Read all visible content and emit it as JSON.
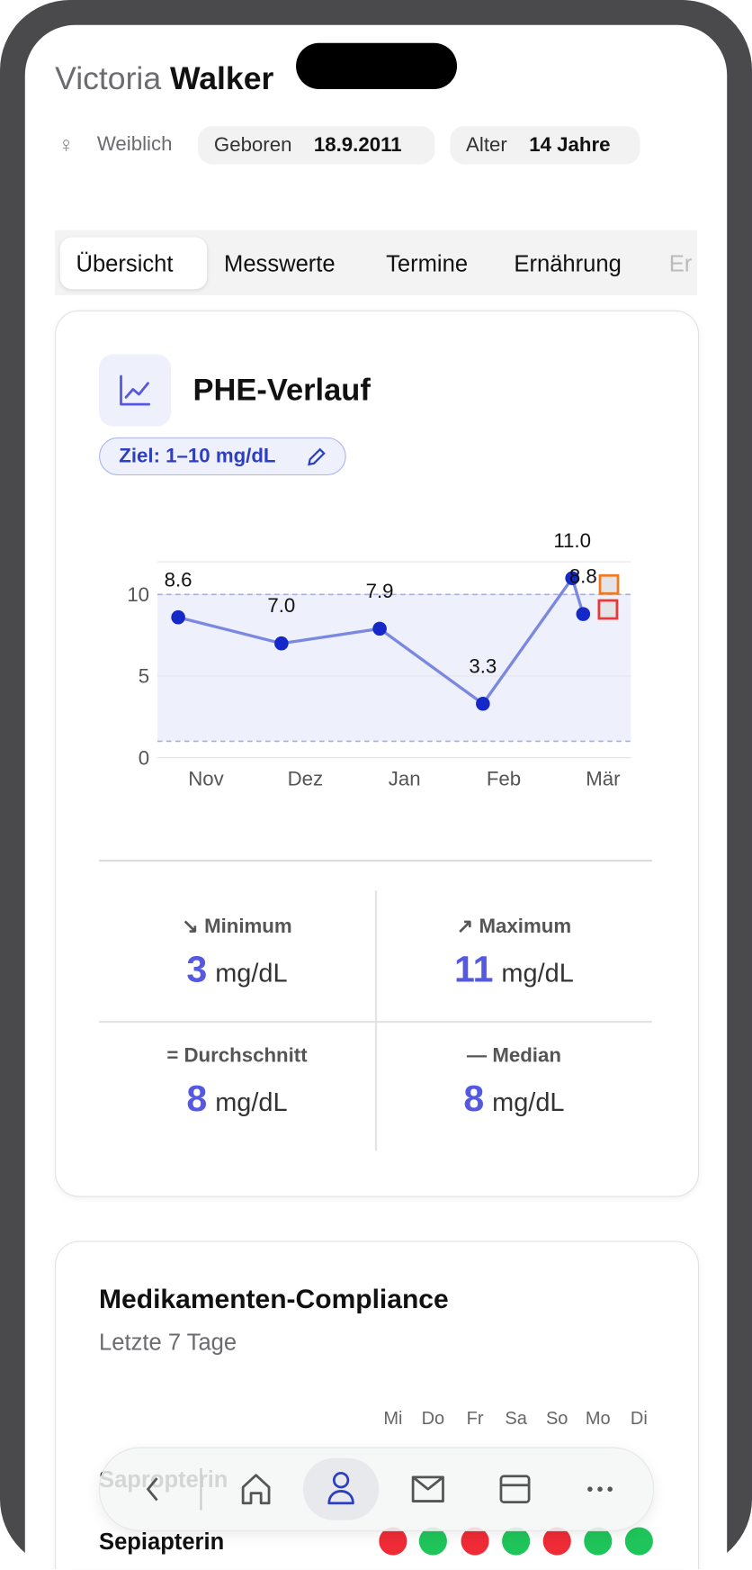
{
  "header": {
    "first_name": "Victoria",
    "last_name": "Walker",
    "gender": "Weiblich",
    "born_label": "Geboren",
    "born": "18.9.2011",
    "age_label": "Alter",
    "age": "14 Jahre"
  },
  "tabs": [
    "Übersicht",
    "Messwerte",
    "Termine",
    "Ernährung",
    "Er"
  ],
  "phe_card": {
    "title": "PHE-Verlauf",
    "target_label": "Ziel: 1–10 mg/dL"
  },
  "chart_data": {
    "type": "line",
    "x": [
      -0.28,
      0.76,
      1.75,
      2.79,
      3.69,
      3.8
    ],
    "values": [
      8.6,
      7.0,
      7.9,
      3.3,
      11.0,
      8.8
    ],
    "value_labels": [
      "8.6",
      "7.0",
      "7.9",
      "3.3",
      "11.0",
      "8.8"
    ],
    "xlim": [
      -0.49,
      4.28
    ],
    "xticks": [
      {
        "value": 0,
        "label": "Nov"
      },
      {
        "value": 1,
        "label": "Dez"
      },
      {
        "value": 2,
        "label": "Jan"
      },
      {
        "value": 3,
        "label": "Feb"
      },
      {
        "value": 4,
        "label": "Mär"
      }
    ],
    "ylim": [
      0,
      12
    ],
    "yticks": [
      0,
      5,
      10
    ],
    "target_band": [
      1,
      10
    ],
    "line_color": "#7b88e0",
    "point_color": "#1528c8",
    "band_color": "#eef0fb",
    "grid": true
  },
  "stats": [
    {
      "label": "Minimum",
      "value": "3",
      "unit": "mg/dL"
    },
    {
      "label": "Maximum",
      "value": "11",
      "unit": "mg/dL"
    },
    {
      "label": "Durchschnitt",
      "value": "8",
      "unit": "mg/dL"
    },
    {
      "label": "Median",
      "value": "8",
      "unit": "mg/dL"
    }
  ],
  "compliance": {
    "title": "Medikamenten-Compliance",
    "subtitle": "Letzte 7 Tage",
    "days": [
      "Mi",
      "Do",
      "Fr",
      "Sa",
      "So",
      "Mo",
      "Di"
    ],
    "rows": [
      {
        "name": "Sapropterin"
      },
      {
        "name": "Sepiapterin",
        "dots": [
          "#ef2b36",
          "#1fc55a",
          "#ef2b36",
          "#1fc55a",
          "#ef2b36",
          "#1fc55a",
          "#1fc55a"
        ]
      }
    ]
  }
}
